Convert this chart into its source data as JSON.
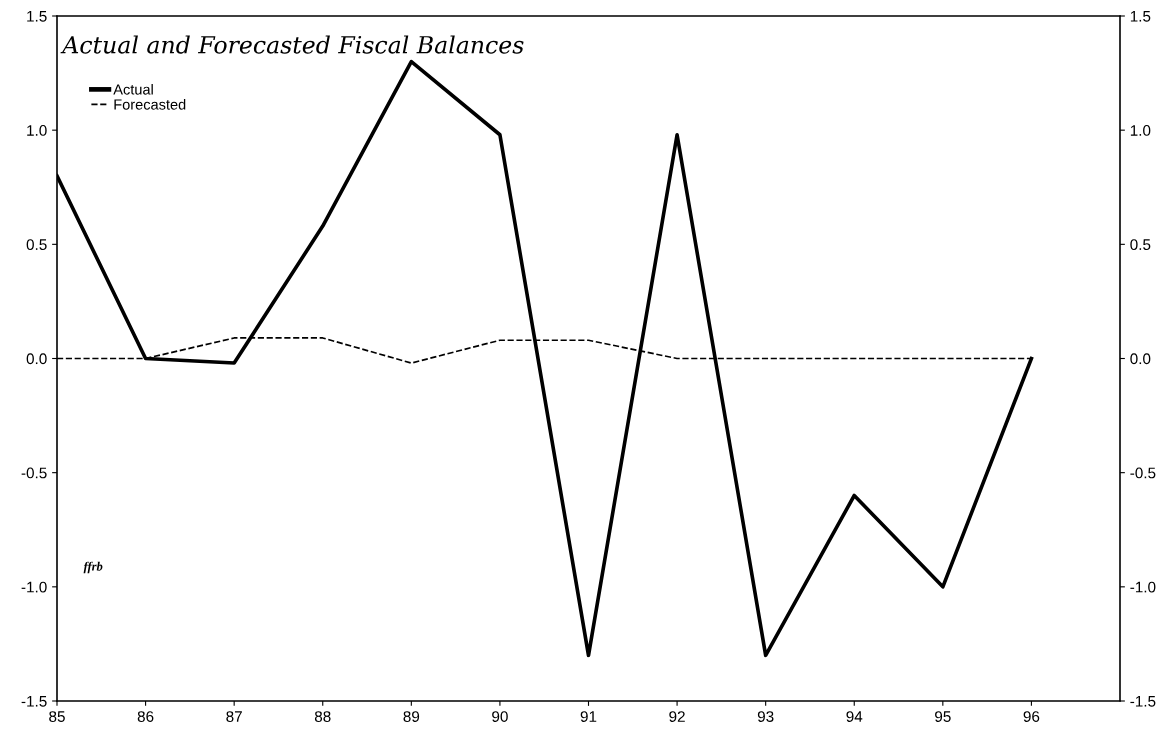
{
  "chart_data": {
    "type": "line",
    "title": "Actual and Forecasted Fiscal Balances",
    "x": [
      85,
      86,
      87,
      88,
      89,
      90,
      91,
      92,
      93,
      94,
      95,
      96
    ],
    "series": [
      {
        "name": "Actual",
        "color": "#000000",
        "line_style": "solid",
        "values": [
          0.8,
          0.0,
          -0.02,
          0.58,
          1.3,
          0.98,
          -1.3,
          0.98,
          -1.3,
          -0.6,
          -1.0,
          0.0
        ]
      },
      {
        "name": "Forecasted",
        "color": "#000000",
        "line_style": "dashed",
        "values": [
          0.0,
          0.0,
          0.09,
          0.09,
          -0.02,
          0.08,
          0.08,
          0.0,
          0.0,
          0.0,
          0.0,
          0.0
        ]
      }
    ],
    "xlim": [
      85,
      97
    ],
    "xticks": [
      85,
      86,
      87,
      88,
      89,
      90,
      91,
      92,
      93,
      94,
      95,
      96
    ],
    "ylim": [
      -1.5,
      1.5
    ],
    "yticks": [
      {
        "value": -1.5,
        "label": "-1.5"
      },
      {
        "value": -1.0,
        "label": "-1.0"
      },
      {
        "value": -0.5,
        "label": "-0.5"
      },
      {
        "value": 0.0,
        "label": "0.0"
      },
      {
        "value": 0.5,
        "label": "0.5"
      },
      {
        "value": 1.0,
        "label": "1.0"
      },
      {
        "value": 1.5,
        "label": "1.5"
      }
    ],
    "y2lim": [
      -1.5,
      1.5
    ],
    "y2ticks": [
      {
        "value": -1.5,
        "label": "-1.5"
      },
      {
        "value": -1.0,
        "label": "-1.0"
      },
      {
        "value": -0.5,
        "label": "-0.5"
      },
      {
        "value": 0.0,
        "label": "0.0"
      },
      {
        "value": 0.5,
        "label": "0.5"
      },
      {
        "value": 1.0,
        "label": "1.0"
      },
      {
        "value": 1.5,
        "label": "1.5"
      }
    ],
    "annotations": [
      "ffrb"
    ],
    "legend": "top left",
    "grid": false,
    "marker": "none"
  }
}
